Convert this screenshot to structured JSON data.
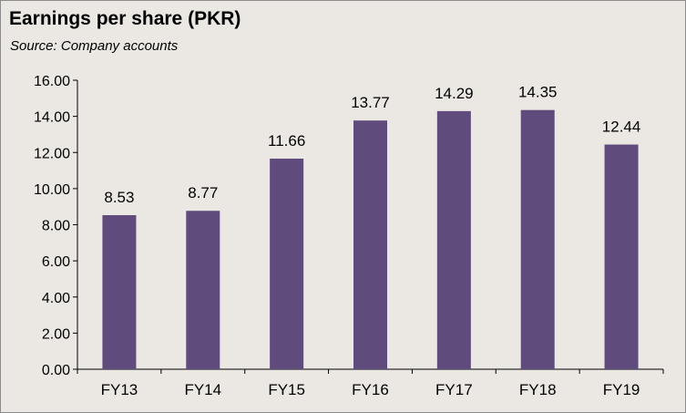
{
  "header": {
    "title": "Earnings per share (PKR)",
    "subtitle": "Source: Company accounts"
  },
  "colors": {
    "bar": "#5f4b7c",
    "axis": "#000000",
    "background": "#ebe8e3"
  },
  "chart_data": {
    "type": "bar",
    "title": "Earnings per share (PKR)",
    "subtitle": "Source: Company accounts",
    "categories": [
      "FY13",
      "FY14",
      "FY15",
      "FY16",
      "FY17",
      "FY18",
      "FY19"
    ],
    "values": [
      8.53,
      8.77,
      11.66,
      13.77,
      14.29,
      14.35,
      12.44
    ],
    "value_labels": [
      "8.53",
      "8.77",
      "11.66",
      "13.77",
      "14.29",
      "14.35",
      "12.44"
    ],
    "y_ticks": [
      "0.00",
      "2.00",
      "4.00",
      "6.00",
      "8.00",
      "10.00",
      "12.00",
      "14.00",
      "16.00"
    ],
    "ylim": [
      0,
      16
    ],
    "xlabel": "",
    "ylabel": "",
    "grid": false,
    "legend": "none"
  }
}
